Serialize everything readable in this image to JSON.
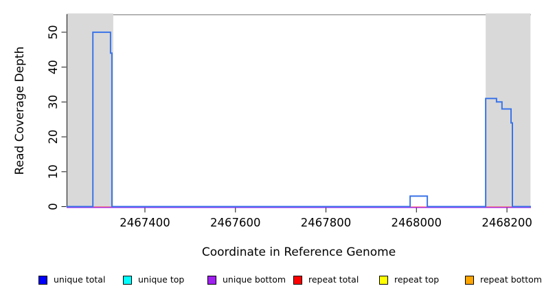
{
  "chart_data": {
    "type": "line",
    "title": "",
    "xlabel": "Coordinate in Reference Genome",
    "ylabel": "Read Coverage Depth",
    "xlim": [
      2467227,
      2468253
    ],
    "ylim": [
      0,
      55
    ],
    "grid": false,
    "x_ticks": [
      {
        "value": 2467400,
        "label": "2467400"
      },
      {
        "value": 2467600,
        "label": "2467600"
      },
      {
        "value": 2467800,
        "label": "2467800"
      },
      {
        "value": 2468000,
        "label": "2468000"
      },
      {
        "value": 2468200,
        "label": "2468200"
      }
    ],
    "y_ticks": [
      {
        "value": 0,
        "label": "0"
      },
      {
        "value": 10,
        "label": "10"
      },
      {
        "value": 20,
        "label": "20"
      },
      {
        "value": 30,
        "label": "30"
      },
      {
        "value": 40,
        "label": "40"
      },
      {
        "value": 50,
        "label": "50"
      }
    ],
    "shaded_regions": [
      {
        "x0": 2467229,
        "x1": 2467330,
        "color": "#d9d9d9"
      },
      {
        "x0": 2468153,
        "x1": 2468252,
        "color": "#d9d9d9"
      }
    ],
    "series": [
      {
        "name": "unique total",
        "color": "#3a74e8",
        "points": [
          [
            2467227,
            0
          ],
          [
            2467285,
            0
          ],
          [
            2467285,
            50
          ],
          [
            2467324,
            50
          ],
          [
            2467324,
            44
          ],
          [
            2467327,
            44
          ],
          [
            2467327,
            0
          ],
          [
            2467986,
            0
          ],
          [
            2467986,
            3
          ],
          [
            2468024,
            3
          ],
          [
            2468024,
            0
          ],
          [
            2468153,
            0
          ],
          [
            2468153,
            31
          ],
          [
            2468177,
            31
          ],
          [
            2468177,
            30
          ],
          [
            2468189,
            30
          ],
          [
            2468189,
            28
          ],
          [
            2468209,
            28
          ],
          [
            2468209,
            24
          ],
          [
            2468212,
            24
          ],
          [
            2468212,
            0
          ],
          [
            2468253,
            0
          ]
        ]
      },
      {
        "name": "unique top",
        "color": "#00ffff",
        "points": [
          [
            2467227,
            0
          ],
          [
            2468253,
            0
          ]
        ]
      },
      {
        "name": "unique bottom",
        "color": "#a020f0",
        "points": [
          [
            2467227,
            0
          ],
          [
            2468253,
            0
          ]
        ]
      },
      {
        "name": "repeat total",
        "color": "#ff4444",
        "points": [
          [
            2467227,
            0
          ],
          [
            2468253,
            0
          ]
        ]
      },
      {
        "name": "repeat top",
        "color": "#ffff00",
        "points": [
          [
            2467227,
            0
          ],
          [
            2468253,
            0
          ]
        ]
      },
      {
        "name": "repeat bottom",
        "color": "#ffa500",
        "points": [
          [
            2467227,
            0
          ],
          [
            2468253,
            0
          ]
        ]
      }
    ],
    "legend": {
      "position": "bottom",
      "items": [
        {
          "label": "unique total",
          "color": "#0000ff"
        },
        {
          "label": "unique top",
          "color": "#00ffff"
        },
        {
          "label": "unique bottom",
          "color": "#a020f0"
        },
        {
          "label": "repeat total",
          "color": "#ff0000"
        },
        {
          "label": "repeat top",
          "color": "#ffff00"
        },
        {
          "label": "repeat bottom",
          "color": "#ffa500"
        }
      ]
    },
    "frame": {
      "top_border_color": "#8c8c8c",
      "axis_color": "#262626"
    }
  }
}
